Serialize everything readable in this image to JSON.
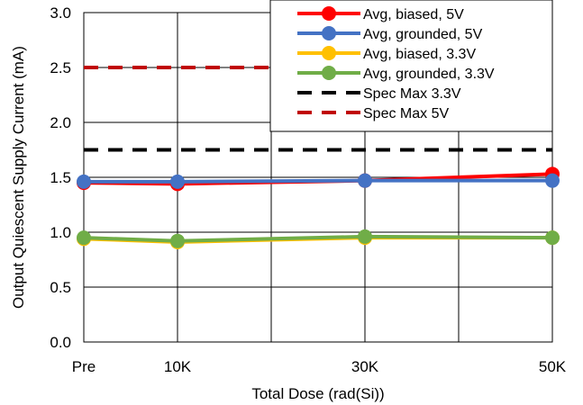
{
  "chart_data": {
    "type": "line",
    "xlabel": "Total Dose (rad(Si))",
    "ylabel": "Output Quiescent Supply Current (mA)",
    "categories": [
      "Pre",
      "10K",
      "30K",
      "50K"
    ],
    "x_positions": [
      0,
      10,
      30,
      50
    ],
    "xlim": [
      0,
      50
    ],
    "ylim": [
      0.0,
      3.0
    ],
    "yticks": [
      "0.0",
      "0.5",
      "1.0",
      "1.5",
      "2.0",
      "2.5",
      "3.0"
    ],
    "grid": true,
    "legend_position": "top-right",
    "series": [
      {
        "name": "Avg, biased, 5V",
        "color": "#ff0000",
        "style": "line-marker",
        "values": [
          1.45,
          1.44,
          1.47,
          1.53
        ]
      },
      {
        "name": "Avg, grounded, 5V",
        "color": "#4472c4",
        "style": "line-marker",
        "values": [
          1.46,
          1.46,
          1.47,
          1.47
        ]
      },
      {
        "name": "Avg, biased, 3.3V",
        "color": "#ffc000",
        "style": "line-marker",
        "values": [
          0.94,
          0.91,
          0.95,
          0.95
        ]
      },
      {
        "name": "Avg, grounded, 3.3V",
        "color": "#70ad47",
        "style": "line-marker",
        "values": [
          0.95,
          0.92,
          0.96,
          0.95
        ]
      },
      {
        "name": "Spec Max 3.3V",
        "color": "#000000",
        "style": "dashed",
        "values": [
          1.75,
          1.75,
          1.75,
          1.75
        ]
      },
      {
        "name": "Spec Max 5V",
        "color": "#c00000",
        "style": "dashed",
        "values": [
          2.5,
          2.5,
          2.5,
          2.5
        ]
      }
    ]
  }
}
